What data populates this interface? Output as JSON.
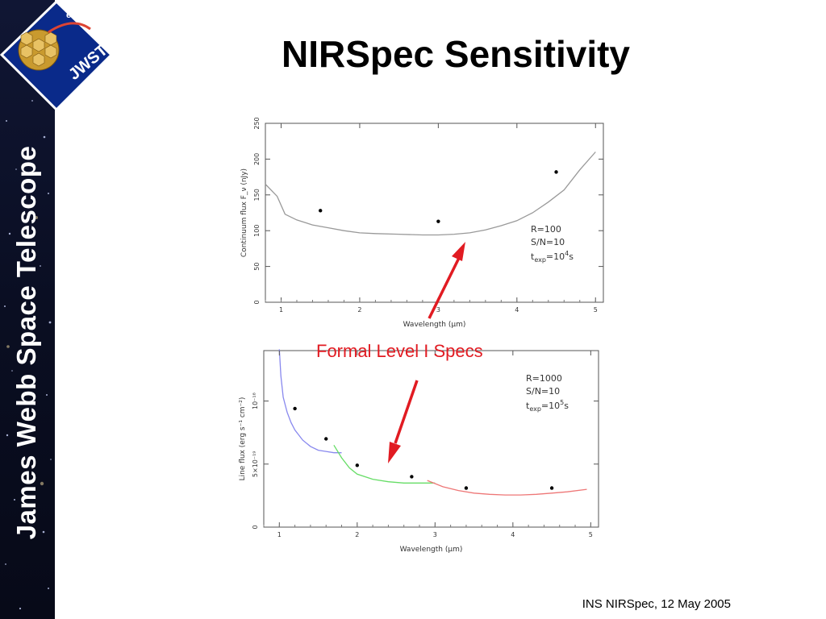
{
  "slide": {
    "title": "NIRSpec Sensitivity",
    "callout": "Formal Level I Specs",
    "footer": "INS NIRSpec, 12 May 2005",
    "sidebar_title": "James Webb Space Telescope"
  },
  "logo": {
    "agency": "esa",
    "mission": "JWST"
  },
  "colors": {
    "callout": "#e11b22",
    "sidebar_bg": "#0b0f24",
    "logo_bg": "#0a2a8a"
  },
  "chart_data": [
    {
      "type": "line",
      "title": "",
      "xlabel": "Wavelength (μm)",
      "ylabel": "Continuum flux F_ν (nJy)",
      "xlim": [
        0.8,
        5.1
      ],
      "ylim": [
        0,
        250
      ],
      "x_ticks": [
        1,
        2,
        3,
        4,
        5
      ],
      "y_ticks": [
        0,
        50,
        100,
        150,
        200,
        250
      ],
      "annotation": [
        "R=100",
        "S/N=10",
        "t_exp=10^4 s"
      ],
      "series": [
        {
          "color": "#999999",
          "x": [
            0.8,
            0.95,
            1.05,
            1.2,
            1.4,
            1.6,
            1.8,
            2.0,
            2.2,
            2.5,
            2.8,
            3.0,
            3.2,
            3.4,
            3.6,
            3.8,
            4.0,
            4.2,
            4.4,
            4.6,
            4.8,
            5.0
          ],
          "y": [
            165,
            148,
            123,
            115,
            108,
            104,
            100,
            97,
            96,
            95,
            94,
            94,
            95,
            97,
            101,
            107,
            114,
            125,
            140,
            157,
            185,
            210
          ]
        }
      ],
      "points": {
        "x": [
          1.5,
          3.0,
          4.5
        ],
        "y": [
          128,
          113,
          182
        ]
      }
    },
    {
      "type": "line",
      "title": "",
      "xlabel": "Wavelength (μm)",
      "ylabel": "Line flux (erg s⁻¹ cm⁻²)",
      "xlim": [
        0.8,
        5.1
      ],
      "ylim": [
        0,
        1.4e-18
      ],
      "x_ticks": [
        1,
        2,
        3,
        4,
        5
      ],
      "y_ticks": [
        0,
        5e-19,
        1e-18
      ],
      "y_tick_labels": [
        "0",
        "5×10⁻¹⁹",
        "10⁻¹⁸"
      ],
      "annotation": [
        "R=1000",
        "S/N=10",
        "t_exp=10^5 s"
      ],
      "series": [
        {
          "color": "#8888ee",
          "x": [
            1.0,
            1.02,
            1.05,
            1.1,
            1.15,
            1.2,
            1.3,
            1.4,
            1.5,
            1.6,
            1.7,
            1.8
          ],
          "y": [
            1.41e-18,
            1.2e-18,
            1.03e-18,
            9.1e-19,
            8.3e-19,
            7.7e-19,
            6.9e-19,
            6.4e-19,
            6.1e-19,
            6e-19,
            5.9e-19,
            5.9e-19
          ]
        },
        {
          "color": "#66dd66",
          "x": [
            1.7,
            1.8,
            1.9,
            2.0,
            2.2,
            2.4,
            2.6,
            2.8,
            3.0
          ],
          "y": [
            6.5e-19,
            5.5e-19,
            4.7e-19,
            4.2e-19,
            3.8e-19,
            3.6e-19,
            3.5e-19,
            3.5e-19,
            3.5e-19
          ]
        },
        {
          "color": "#ee7777",
          "x": [
            2.9,
            3.1,
            3.3,
            3.5,
            3.7,
            3.9,
            4.1,
            4.3,
            4.5,
            4.7,
            4.95
          ],
          "y": [
            3.7e-19,
            3.2e-19,
            2.9e-19,
            2.7e-19,
            2.6e-19,
            2.55e-19,
            2.55e-19,
            2.6e-19,
            2.7e-19,
            2.8e-19,
            3e-19
          ]
        }
      ],
      "points": {
        "x": [
          1.2,
          1.6,
          2.0,
          2.7,
          3.4,
          4.5
        ],
        "y": [
          9.4e-19,
          7e-19,
          4.9e-19,
          4e-19,
          3.1e-19,
          3.1e-19
        ]
      }
    }
  ]
}
